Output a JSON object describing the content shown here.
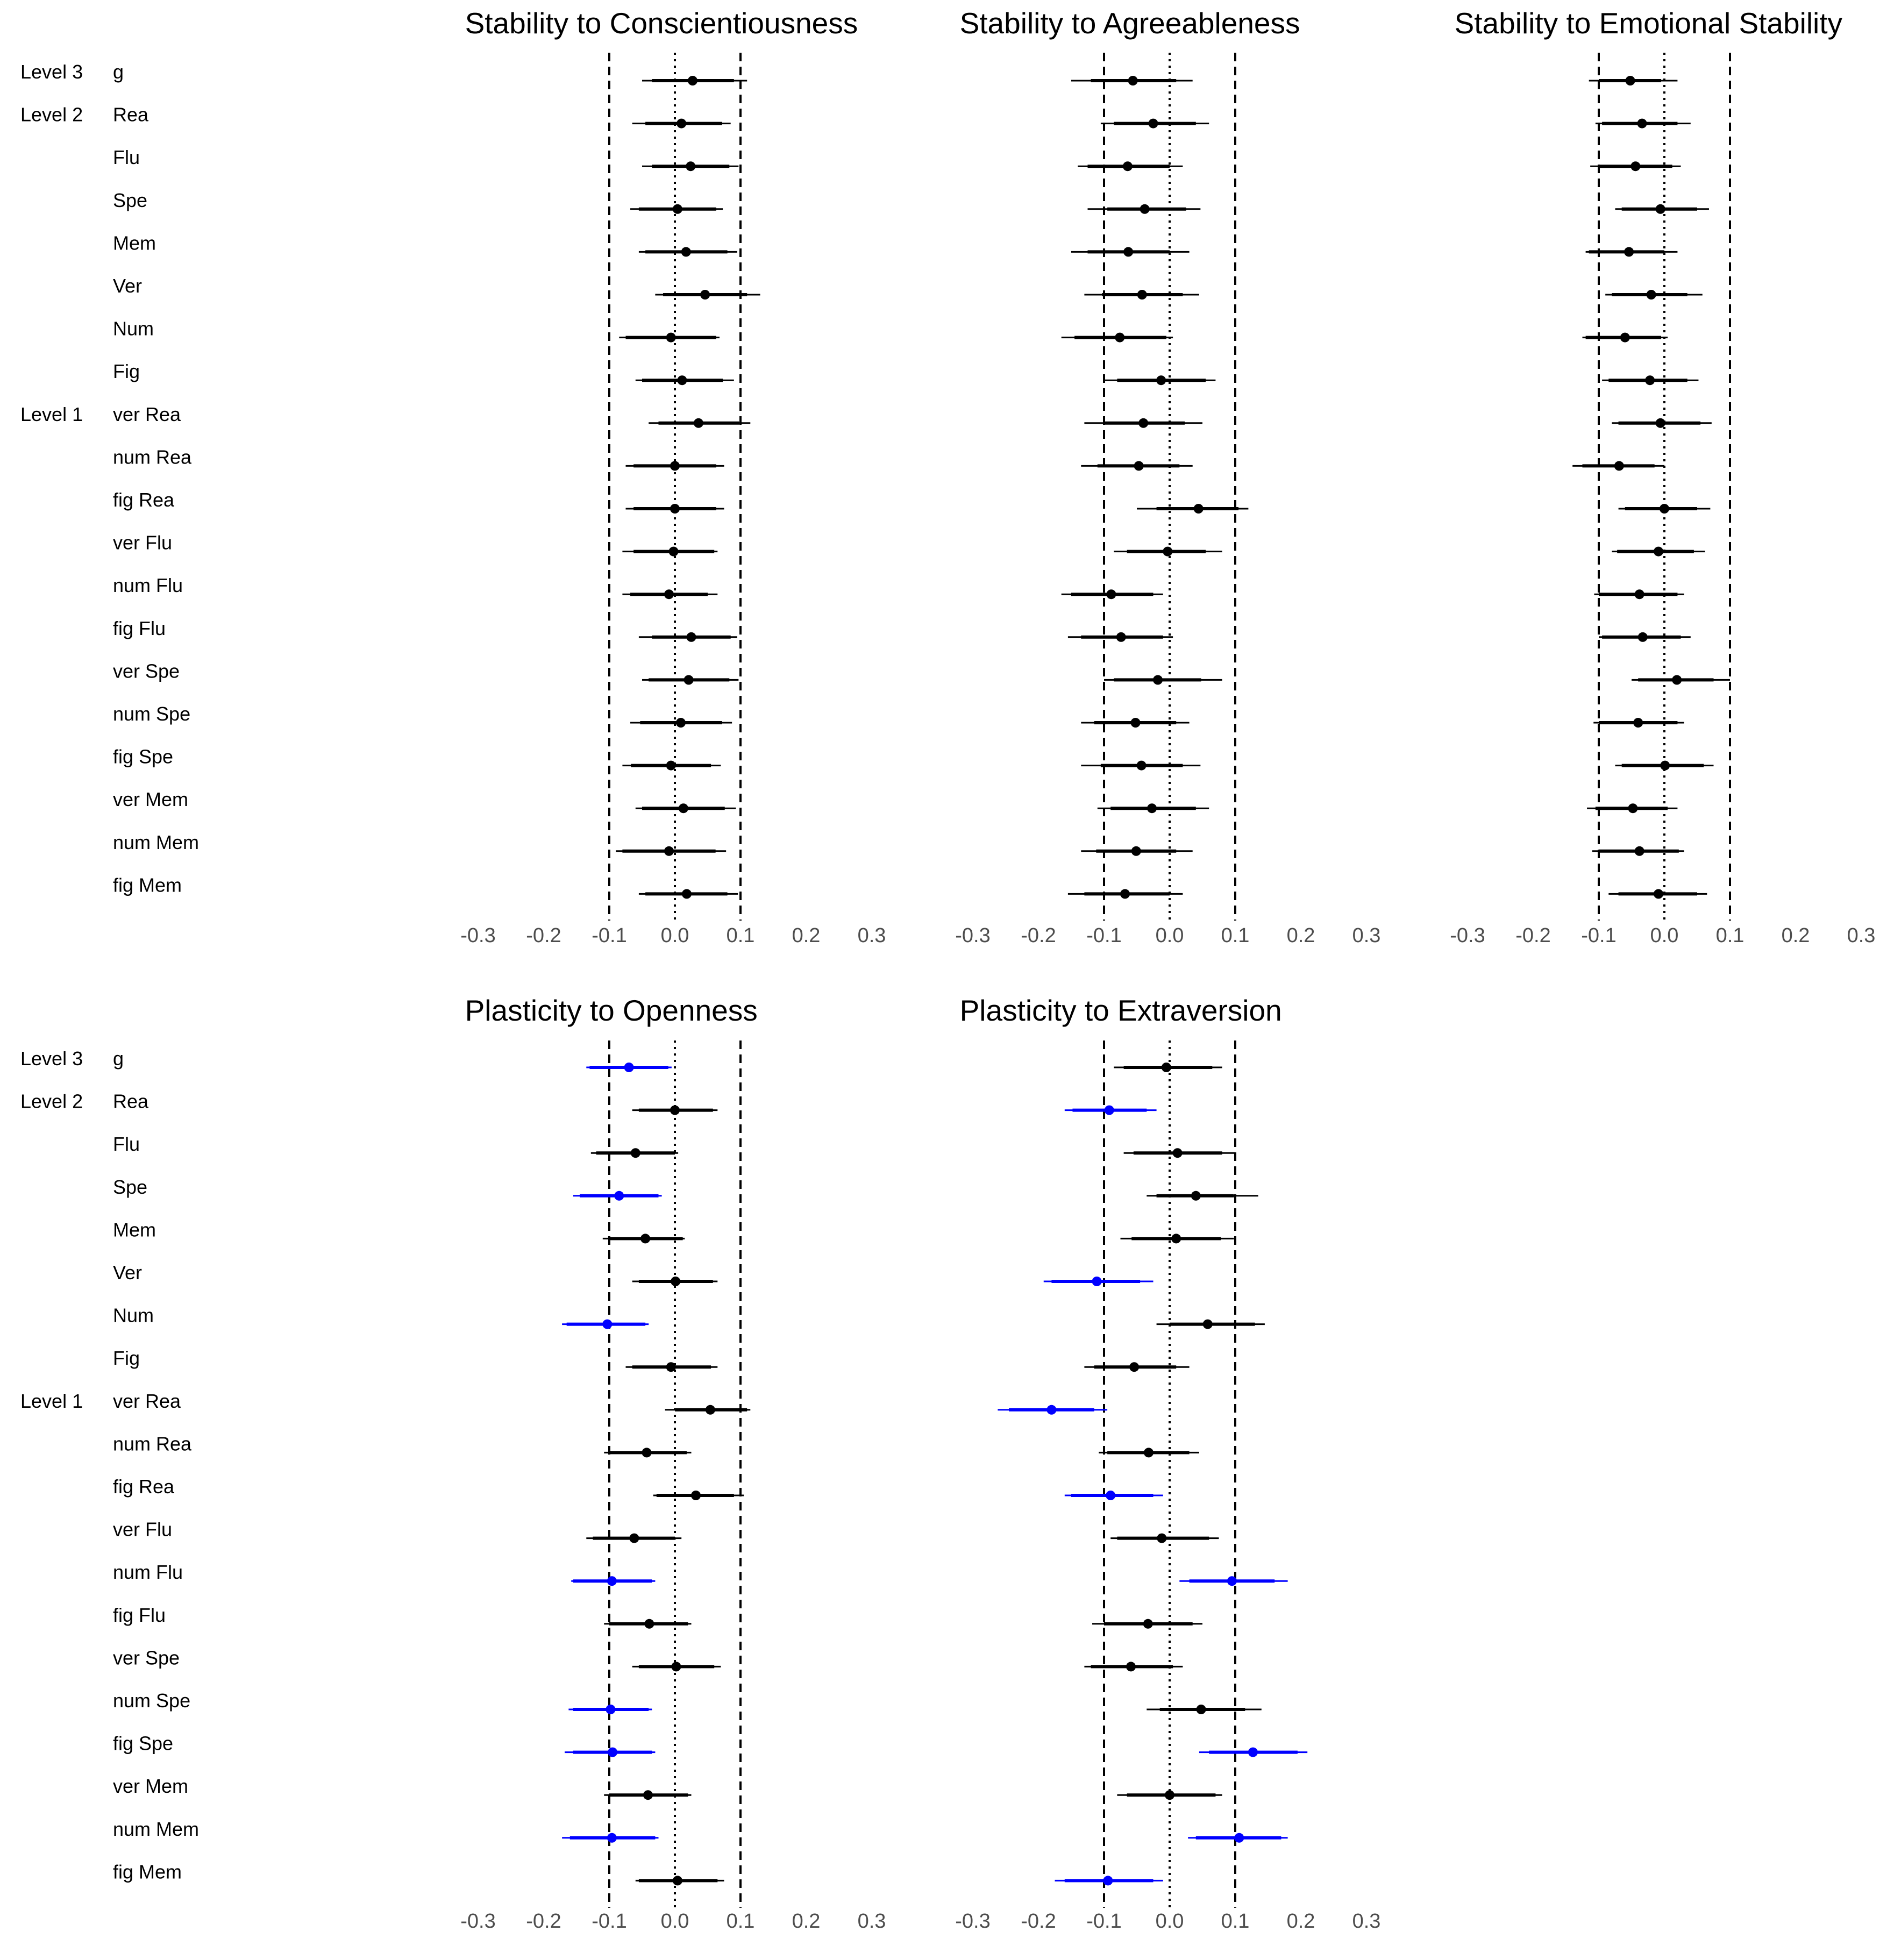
{
  "chart_data": {
    "type": "forest",
    "level_labels": [
      {
        "label": "Level 3",
        "row": 0
      },
      {
        "label": "Level 2",
        "row": 1
      },
      {
        "label": "Level 1",
        "row": 8
      }
    ],
    "rows": [
      "g",
      "Rea",
      "Flu",
      "Spe",
      "Mem",
      "Ver",
      "Num",
      "Fig",
      "ver Rea",
      "num Rea",
      "fig Rea",
      "ver Flu",
      "num Flu",
      "fig Flu",
      "ver Spe",
      "num Spe",
      "fig Spe",
      "ver Mem",
      "num Mem",
      "fig Mem"
    ],
    "x_ticks": [
      -0.3,
      -0.2,
      -0.1,
      0.0,
      0.1,
      0.2,
      0.3
    ],
    "x_tick_labels": [
      "-0.3",
      "-0.2",
      "-0.1",
      "0.0",
      "0.1",
      "0.2",
      "0.3"
    ],
    "xlim": [
      -0.32,
      0.32
    ],
    "reference_lines": {
      "dashed": [
        -0.1,
        0.1
      ],
      "dotted": [
        0.0
      ]
    },
    "colors": {
      "default": "#000000",
      "highlight": "#0000ff",
      "axis_text": "#4d4d4d"
    },
    "panels": [
      {
        "title": "Stability to Conscientiousness",
        "estimate": [
          0.027,
          0.01,
          0.024,
          0.004,
          0.017,
          0.046,
          -0.006,
          0.011,
          0.036,
          0.0,
          0.0,
          -0.002,
          -0.009,
          0.025,
          0.021,
          0.009,
          -0.006,
          0.013,
          -0.009,
          0.018
        ],
        "inner_lo": [
          -0.035,
          -0.045,
          -0.035,
          -0.055,
          -0.045,
          -0.018,
          -0.075,
          -0.05,
          -0.025,
          -0.063,
          -0.063,
          -0.063,
          -0.068,
          -0.035,
          -0.04,
          -0.053,
          -0.067,
          -0.05,
          -0.08,
          -0.045
        ],
        "inner_hi": [
          0.09,
          0.072,
          0.083,
          0.063,
          0.08,
          0.11,
          0.063,
          0.073,
          0.098,
          0.063,
          0.063,
          0.06,
          0.05,
          0.085,
          0.083,
          0.072,
          0.055,
          0.076,
          0.062,
          0.08
        ],
        "outer_lo": [
          -0.05,
          -0.065,
          -0.05,
          -0.068,
          -0.055,
          -0.03,
          -0.085,
          -0.06,
          -0.04,
          -0.075,
          -0.075,
          -0.08,
          -0.08,
          -0.055,
          -0.05,
          -0.068,
          -0.08,
          -0.06,
          -0.09,
          -0.055
        ],
        "outer_hi": [
          0.11,
          0.085,
          0.097,
          0.073,
          0.095,
          0.13,
          0.068,
          0.09,
          0.115,
          0.075,
          0.075,
          0.065,
          0.065,
          0.095,
          0.097,
          0.087,
          0.07,
          0.093,
          0.078,
          0.096
        ],
        "highlight": [
          false,
          false,
          false,
          false,
          false,
          false,
          false,
          false,
          false,
          false,
          false,
          false,
          false,
          false,
          false,
          false,
          false,
          false,
          false,
          false
        ]
      },
      {
        "title": "Stability to Agreeableness",
        "estimate": [
          -0.056,
          -0.025,
          -0.064,
          -0.038,
          -0.063,
          -0.042,
          -0.076,
          -0.013,
          -0.04,
          -0.047,
          0.044,
          -0.003,
          -0.089,
          -0.074,
          -0.018,
          -0.052,
          -0.043,
          -0.027,
          -0.051,
          -0.068
        ],
        "inner_lo": [
          -0.12,
          -0.085,
          -0.125,
          -0.095,
          -0.125,
          -0.103,
          -0.145,
          -0.08,
          -0.1,
          -0.11,
          -0.02,
          -0.065,
          -0.15,
          -0.135,
          -0.085,
          -0.115,
          -0.105,
          -0.09,
          -0.112,
          -0.13
        ],
        "inner_hi": [
          0.01,
          0.04,
          0.0,
          0.025,
          0.0,
          0.02,
          -0.005,
          0.055,
          0.023,
          0.015,
          0.105,
          0.055,
          -0.025,
          -0.01,
          0.048,
          0.01,
          0.02,
          0.04,
          0.01,
          0.0
        ],
        "outer_lo": [
          -0.15,
          -0.105,
          -0.14,
          -0.125,
          -0.15,
          -0.13,
          -0.165,
          -0.1,
          -0.13,
          -0.135,
          -0.05,
          -0.085,
          -0.165,
          -0.155,
          -0.1,
          -0.135,
          -0.135,
          -0.11,
          -0.135,
          -0.155
        ],
        "outer_hi": [
          0.035,
          0.06,
          0.02,
          0.047,
          0.03,
          0.045,
          0.005,
          0.07,
          0.05,
          0.035,
          0.12,
          0.08,
          -0.01,
          0.005,
          0.08,
          0.03,
          0.047,
          0.06,
          0.035,
          0.02
        ],
        "highlight": [
          false,
          false,
          false,
          false,
          false,
          false,
          false,
          false,
          false,
          false,
          false,
          false,
          false,
          false,
          false,
          false,
          false,
          false,
          false,
          false
        ]
      },
      {
        "title": "Stability to Emotional Stability",
        "estimate": [
          -0.052,
          -0.034,
          -0.044,
          -0.006,
          -0.054,
          -0.02,
          -0.06,
          -0.022,
          -0.006,
          -0.069,
          0.0,
          -0.009,
          -0.038,
          -0.033,
          0.019,
          -0.04,
          0.001,
          -0.048,
          -0.038,
          -0.009
        ],
        "inner_lo": [
          -0.1,
          -0.095,
          -0.1,
          -0.065,
          -0.115,
          -0.08,
          -0.12,
          -0.085,
          -0.07,
          -0.125,
          -0.06,
          -0.072,
          -0.1,
          -0.095,
          -0.04,
          -0.1,
          -0.065,
          -0.105,
          -0.1,
          -0.07
        ],
        "inner_hi": [
          -0.005,
          0.02,
          0.012,
          0.05,
          0.0,
          0.035,
          -0.005,
          0.035,
          0.055,
          -0.015,
          0.05,
          0.045,
          0.02,
          0.025,
          0.075,
          0.02,
          0.06,
          0.005,
          0.022,
          0.05
        ],
        "outer_lo": [
          -0.115,
          -0.105,
          -0.113,
          -0.075,
          -0.12,
          -0.09,
          -0.125,
          -0.095,
          -0.08,
          -0.14,
          -0.07,
          -0.08,
          -0.107,
          -0.1,
          -0.05,
          -0.108,
          -0.075,
          -0.118,
          -0.11,
          -0.085
        ],
        "outer_hi": [
          0.02,
          0.04,
          0.025,
          0.068,
          0.02,
          0.058,
          0.005,
          0.052,
          0.072,
          0.0,
          0.07,
          0.062,
          0.03,
          0.04,
          0.1,
          0.03,
          0.075,
          0.02,
          0.03,
          0.065
        ],
        "highlight": [
          false,
          false,
          false,
          false,
          false,
          false,
          false,
          false,
          false,
          false,
          false,
          false,
          false,
          false,
          false,
          false,
          false,
          false,
          false,
          false
        ]
      },
      {
        "title": "Plasticity to Openness",
        "estimate": [
          -0.07,
          0.0,
          -0.06,
          -0.085,
          -0.045,
          0.001,
          -0.103,
          -0.006,
          0.054,
          -0.043,
          0.032,
          -0.062,
          -0.096,
          -0.039,
          0.002,
          -0.098,
          -0.095,
          -0.041,
          -0.096,
          0.004
        ],
        "inner_lo": [
          -0.13,
          -0.055,
          -0.12,
          -0.145,
          -0.1,
          -0.055,
          -0.165,
          -0.065,
          0.0,
          -0.1,
          -0.028,
          -0.125,
          -0.155,
          -0.1,
          -0.055,
          -0.155,
          -0.155,
          -0.1,
          -0.16,
          -0.055
        ],
        "inner_hi": [
          -0.01,
          0.058,
          0.0,
          -0.025,
          0.012,
          0.058,
          -0.045,
          0.055,
          0.11,
          0.018,
          0.09,
          0.0,
          -0.035,
          0.02,
          0.06,
          -0.04,
          -0.035,
          0.02,
          -0.03,
          0.065
        ],
        "outer_lo": [
          -0.135,
          -0.065,
          -0.128,
          -0.155,
          -0.11,
          -0.065,
          -0.172,
          -0.075,
          -0.015,
          -0.108,
          -0.033,
          -0.135,
          -0.158,
          -0.108,
          -0.065,
          -0.162,
          -0.168,
          -0.108,
          -0.172,
          -0.06
        ],
        "outer_hi": [
          -0.005,
          0.065,
          0.005,
          -0.02,
          0.015,
          0.065,
          -0.04,
          0.065,
          0.115,
          0.025,
          0.105,
          0.01,
          -0.03,
          0.025,
          0.07,
          -0.035,
          -0.03,
          0.025,
          -0.025,
          0.075
        ],
        "highlight": [
          true,
          false,
          false,
          true,
          false,
          false,
          true,
          false,
          false,
          false,
          false,
          false,
          true,
          false,
          false,
          true,
          true,
          false,
          true,
          false
        ]
      },
      {
        "title": "Plasticity to Extraversion",
        "estimate": [
          -0.005,
          -0.092,
          0.012,
          0.04,
          0.01,
          -0.111,
          0.058,
          -0.054,
          -0.18,
          -0.032,
          -0.09,
          -0.012,
          0.095,
          -0.033,
          -0.059,
          0.048,
          0.127,
          0.0,
          0.106,
          -0.094
        ],
        "inner_lo": [
          -0.07,
          -0.148,
          -0.055,
          -0.02,
          -0.058,
          -0.18,
          0.0,
          -0.115,
          -0.245,
          -0.095,
          -0.15,
          -0.08,
          0.03,
          -0.1,
          -0.12,
          -0.015,
          0.06,
          -0.065,
          0.04,
          -0.16
        ],
        "inner_hi": [
          0.065,
          -0.035,
          0.08,
          0.098,
          0.078,
          -0.045,
          0.13,
          0.01,
          -0.115,
          0.03,
          -0.025,
          0.06,
          0.16,
          0.035,
          0.005,
          0.115,
          0.195,
          0.07,
          0.17,
          -0.025
        ],
        "outer_lo": [
          -0.085,
          -0.16,
          -0.07,
          -0.035,
          -0.075,
          -0.192,
          -0.02,
          -0.13,
          -0.262,
          -0.108,
          -0.16,
          -0.09,
          0.015,
          -0.118,
          -0.13,
          -0.035,
          0.045,
          -0.08,
          0.028,
          -0.175
        ],
        "outer_hi": [
          0.08,
          -0.02,
          0.1,
          0.135,
          0.098,
          -0.025,
          0.145,
          0.03,
          -0.095,
          0.045,
          -0.01,
          0.075,
          0.18,
          0.05,
          0.02,
          0.14,
          0.21,
          0.08,
          0.18,
          -0.01
        ],
        "highlight": [
          false,
          true,
          false,
          false,
          false,
          true,
          false,
          false,
          true,
          false,
          true,
          false,
          true,
          false,
          false,
          false,
          true,
          false,
          true,
          true
        ]
      }
    ]
  }
}
